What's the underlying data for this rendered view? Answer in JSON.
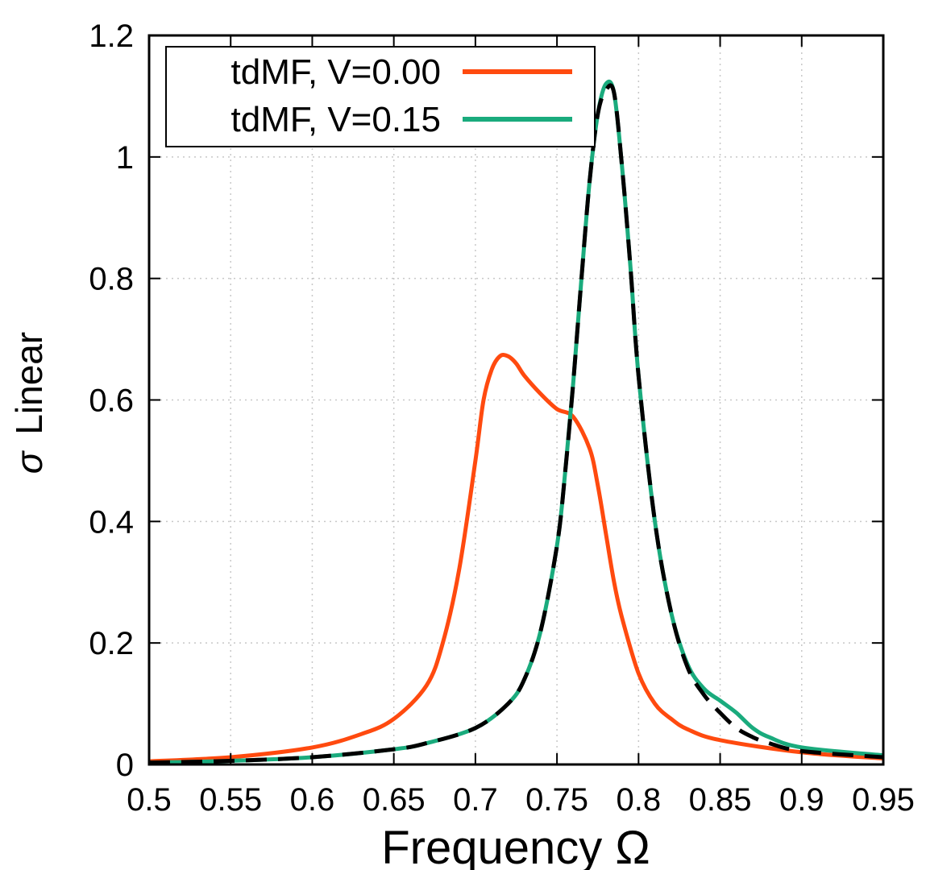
{
  "chart_data": {
    "type": "line",
    "xlabel": "Frequency  Ω",
    "ylabel_symbol": "σ",
    "ylabel_text": "Linear",
    "xlim": [
      0.5,
      0.95
    ],
    "ylim": [
      0,
      1.2
    ],
    "xticks": [
      0.5,
      0.55,
      0.6,
      0.65,
      0.7,
      0.75,
      0.8,
      0.85,
      0.9,
      0.95
    ],
    "xtick_labels": [
      "0.5",
      "0.55",
      "0.6",
      "0.65",
      "0.7",
      "0.75",
      "0.8",
      "0.85",
      "0.9",
      "0.95"
    ],
    "yticks": [
      0,
      0.2,
      0.4,
      0.6,
      0.8,
      1.0,
      1.2
    ],
    "ytick_labels": [
      "0",
      "0.2",
      "0.4",
      "0.6",
      "0.8",
      "1",
      "1.2"
    ],
    "grid": true,
    "legend_position": "top-left",
    "series": [
      {
        "name": "tdMF, V=0.00",
        "color": "#ff4a0f",
        "dashed": false,
        "in_legend": true,
        "x": [
          0.5,
          0.55,
          0.6,
          0.63,
          0.65,
          0.67,
          0.68,
          0.69,
          0.7,
          0.705,
          0.71,
          0.715,
          0.72,
          0.725,
          0.73,
          0.74,
          0.75,
          0.76,
          0.77,
          0.775,
          0.78,
          0.785,
          0.79,
          0.8,
          0.81,
          0.82,
          0.83,
          0.85,
          0.9,
          0.95
        ],
        "y": [
          0.005,
          0.012,
          0.028,
          0.05,
          0.075,
          0.13,
          0.2,
          0.32,
          0.5,
          0.6,
          0.65,
          0.672,
          0.672,
          0.66,
          0.64,
          0.61,
          0.585,
          0.572,
          0.52,
          0.46,
          0.38,
          0.3,
          0.24,
          0.15,
          0.1,
          0.075,
          0.058,
          0.04,
          0.02,
          0.01
        ]
      },
      {
        "name": "tdMF, V=0.15",
        "color": "#1aab7d",
        "dashed": false,
        "in_legend": true,
        "x": [
          0.5,
          0.55,
          0.6,
          0.65,
          0.67,
          0.7,
          0.72,
          0.73,
          0.74,
          0.75,
          0.755,
          0.76,
          0.765,
          0.77,
          0.775,
          0.78,
          0.785,
          0.79,
          0.795,
          0.8,
          0.81,
          0.82,
          0.83,
          0.84,
          0.85,
          0.86,
          0.87,
          0.88,
          0.9,
          0.95
        ],
        "y": [
          0.003,
          0.006,
          0.012,
          0.025,
          0.035,
          0.06,
          0.1,
          0.14,
          0.22,
          0.36,
          0.48,
          0.63,
          0.8,
          0.96,
          1.07,
          1.12,
          1.105,
          0.98,
          0.82,
          0.64,
          0.4,
          0.25,
          0.165,
          0.125,
          0.105,
          0.085,
          0.06,
          0.045,
          0.028,
          0.015
        ]
      },
      {
        "name": "reference (dashed)",
        "color": "#000000",
        "dashed": true,
        "in_legend": false,
        "x": [
          0.5,
          0.55,
          0.6,
          0.65,
          0.67,
          0.7,
          0.72,
          0.73,
          0.74,
          0.75,
          0.755,
          0.76,
          0.765,
          0.77,
          0.775,
          0.78,
          0.785,
          0.79,
          0.795,
          0.8,
          0.81,
          0.82,
          0.83,
          0.84,
          0.85,
          0.86,
          0.87,
          0.88,
          0.9,
          0.95
        ],
        "y": [
          0.003,
          0.006,
          0.012,
          0.025,
          0.035,
          0.06,
          0.1,
          0.14,
          0.22,
          0.36,
          0.48,
          0.63,
          0.8,
          0.96,
          1.07,
          1.11,
          1.105,
          0.98,
          0.82,
          0.64,
          0.4,
          0.25,
          0.16,
          0.115,
          0.085,
          0.06,
          0.045,
          0.035,
          0.022,
          0.012
        ]
      }
    ]
  }
}
